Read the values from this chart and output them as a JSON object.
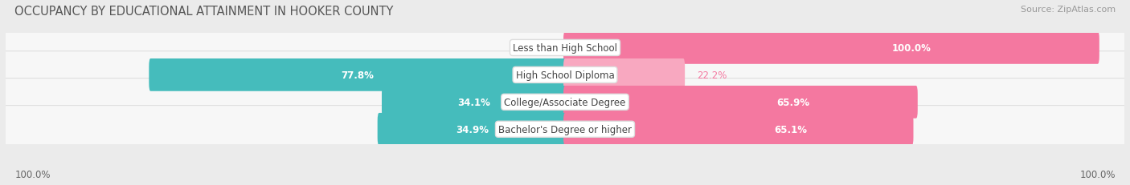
{
  "title": "OCCUPANCY BY EDUCATIONAL ATTAINMENT IN HOOKER COUNTY",
  "source": "Source: ZipAtlas.com",
  "categories": [
    "Less than High School",
    "High School Diploma",
    "College/Associate Degree",
    "Bachelor's Degree or higher"
  ],
  "owner_pct": [
    0.0,
    77.8,
    34.1,
    34.9
  ],
  "renter_pct": [
    100.0,
    22.2,
    65.9,
    65.1
  ],
  "owner_color": "#45BCBC",
  "renter_color": "#F478A0",
  "renter_color_light": "#F8A8C0",
  "bg_color": "#ebebeb",
  "row_bg_color": "#f7f7f7",
  "title_fontsize": 10.5,
  "label_fontsize": 8.5,
  "tick_fontsize": 8.5,
  "legend_fontsize": 8.5,
  "source_fontsize": 8,
  "bar_height": 0.62,
  "left_axis_label": "100.0%",
  "right_axis_label": "100.0%"
}
